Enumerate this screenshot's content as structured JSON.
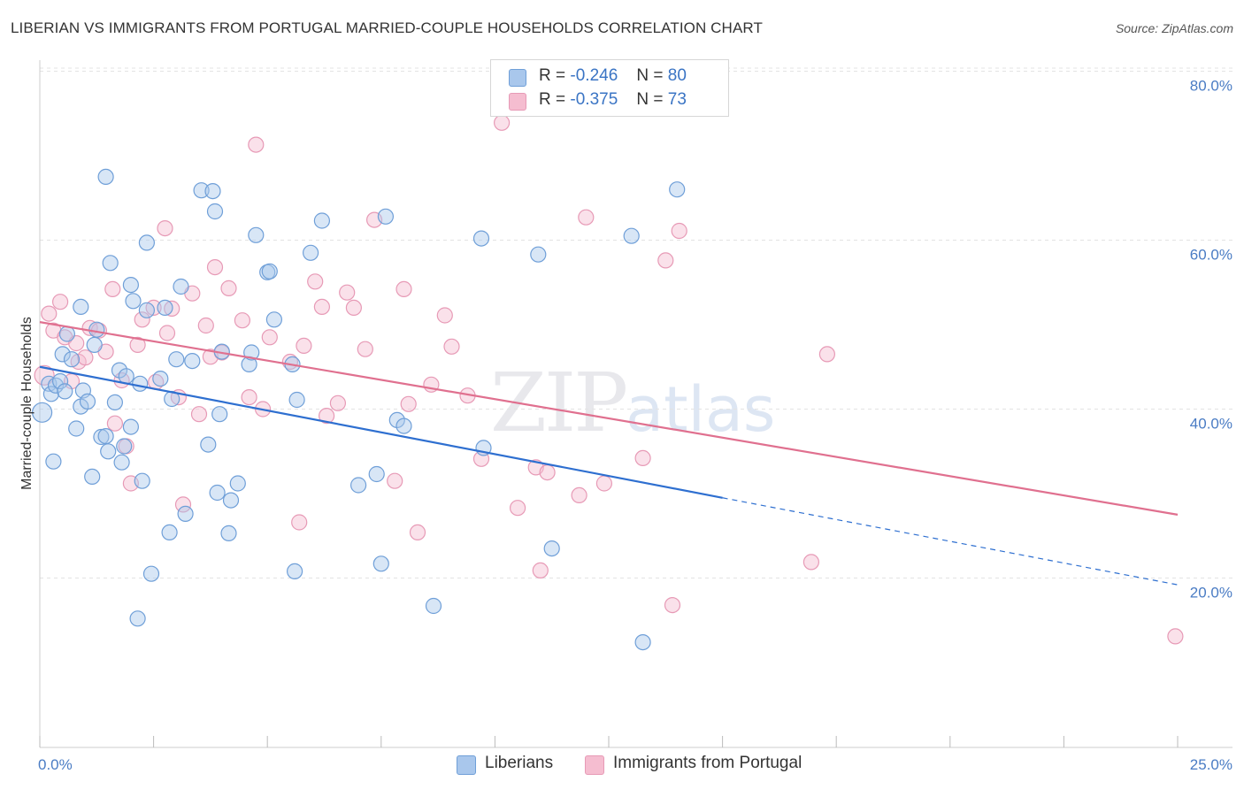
{
  "title": "LIBERIAN VS IMMIGRANTS FROM PORTUGAL MARRIED-COUPLE HOUSEHOLDS CORRELATION CHART",
  "source": "Source: ZipAtlas.com",
  "watermark": {
    "zip": "ZIP",
    "atlas": "atlas"
  },
  "colors": {
    "blue_fill": "#a9c7ec",
    "blue_stroke": "#6f9fd8",
    "blue_line": "#2e6fd0",
    "pink_fill": "#f5bdd0",
    "pink_stroke": "#e79ab6",
    "pink_line": "#e0708f",
    "tick": "#4a7cc4",
    "grid": "#e3e3e3"
  },
  "legend": {
    "rows": [
      {
        "r_label": "R =",
        "r_value": "-0.246",
        "n_label": "N =",
        "n_value": "80"
      },
      {
        "r_label": "R =",
        "r_value": "-0.375",
        "n_label": "N =",
        "n_value": "73"
      }
    ]
  },
  "bottom_legend": [
    "Liberians",
    "Immigrants from Portugal"
  ],
  "chart_data": {
    "type": "scatter",
    "title": "LIBERIAN VS IMMIGRANTS FROM PORTUGAL MARRIED-COUPLE HOUSEHOLDS CORRELATION CHART",
    "xlabel": "",
    "ylabel": "Married-couple Households",
    "xlim": [
      0,
      25
    ],
    "ylim": [
      0,
      82
    ],
    "x_tick_labels": [
      {
        "value": 0,
        "label": "0.0%"
      },
      {
        "value": 25,
        "label": "25.0%"
      }
    ],
    "x_minor_ticks": [
      0,
      2.5,
      5,
      7.5,
      10,
      12.5,
      15,
      17.5,
      20,
      22.5,
      25
    ],
    "y_ticks": [
      {
        "value": 20,
        "label": "20.0%"
      },
      {
        "value": 40,
        "label": "40.0%"
      },
      {
        "value": 60,
        "label": "60.0%"
      },
      {
        "value": 80,
        "label": "80.0%"
      }
    ],
    "grid": true,
    "series": [
      {
        "name": "Liberians",
        "color": "blue",
        "R": -0.246,
        "N": 80,
        "trend": {
          "x0": 0,
          "y0": 45.0,
          "x1": 15,
          "y1": 29.5,
          "dash_x1": 25,
          "dash_y1": 19.2
        },
        "points": [
          [
            0.05,
            39.6
          ],
          [
            0.2,
            43.0
          ],
          [
            0.25,
            41.8
          ],
          [
            0.3,
            33.8
          ],
          [
            0.35,
            42.8
          ],
          [
            0.45,
            43.3
          ],
          [
            0.5,
            46.5
          ],
          [
            0.55,
            42.1
          ],
          [
            0.6,
            48.9
          ],
          [
            0.7,
            45.9
          ],
          [
            0.8,
            37.7
          ],
          [
            0.9,
            52.1
          ],
          [
            0.9,
            40.3
          ],
          [
            0.95,
            42.2
          ],
          [
            1.05,
            40.9
          ],
          [
            1.15,
            32.0
          ],
          [
            1.2,
            47.6
          ],
          [
            1.25,
            49.4
          ],
          [
            1.35,
            36.7
          ],
          [
            1.45,
            36.8
          ],
          [
            1.45,
            67.5
          ],
          [
            1.5,
            35.0
          ],
          [
            1.55,
            57.3
          ],
          [
            1.65,
            40.8
          ],
          [
            1.75,
            44.6
          ],
          [
            1.8,
            33.7
          ],
          [
            1.85,
            35.6
          ],
          [
            1.9,
            43.9
          ],
          [
            2.0,
            37.9
          ],
          [
            2.0,
            54.7
          ],
          [
            2.05,
            52.8
          ],
          [
            2.15,
            15.2
          ],
          [
            2.2,
            43.0
          ],
          [
            2.25,
            31.5
          ],
          [
            2.35,
            51.7
          ],
          [
            2.35,
            59.7
          ],
          [
            2.45,
            20.5
          ],
          [
            2.65,
            43.6
          ],
          [
            2.75,
            52.0
          ],
          [
            2.85,
            25.4
          ],
          [
            2.9,
            41.2
          ],
          [
            3.0,
            45.9
          ],
          [
            3.1,
            54.5
          ],
          [
            3.2,
            27.6
          ],
          [
            3.35,
            45.7
          ],
          [
            3.55,
            65.9
          ],
          [
            3.7,
            35.8
          ],
          [
            3.8,
            65.8
          ],
          [
            3.85,
            63.4
          ],
          [
            3.9,
            30.1
          ],
          [
            3.95,
            39.4
          ],
          [
            4.0,
            46.8
          ],
          [
            4.15,
            25.3
          ],
          [
            4.2,
            29.2
          ],
          [
            4.35,
            31.2
          ],
          [
            4.6,
            45.3
          ],
          [
            4.65,
            46.7
          ],
          [
            4.75,
            60.6
          ],
          [
            5.0,
            56.2
          ],
          [
            5.05,
            56.3
          ],
          [
            5.15,
            50.6
          ],
          [
            5.55,
            45.3
          ],
          [
            5.6,
            20.8
          ],
          [
            5.65,
            41.1
          ],
          [
            5.95,
            58.5
          ],
          [
            6.2,
            62.3
          ],
          [
            7.0,
            31.0
          ],
          [
            7.4,
            32.3
          ],
          [
            7.5,
            21.7
          ],
          [
            7.85,
            38.7
          ],
          [
            8.0,
            38.0
          ],
          [
            8.65,
            16.7
          ],
          [
            9.75,
            35.4
          ],
          [
            10.95,
            58.3
          ],
          [
            11.25,
            23.5
          ],
          [
            13.25,
            12.4
          ],
          [
            14.0,
            66.0
          ],
          [
            9.7,
            60.2
          ],
          [
            7.6,
            62.8
          ],
          [
            13.0,
            60.5
          ]
        ]
      },
      {
        "name": "Immigrants from Portugal",
        "color": "pink",
        "R": -0.375,
        "N": 73,
        "trend": {
          "x0": 0,
          "y0": 50.3,
          "x1": 25,
          "y1": 27.5
        },
        "points": [
          [
            0.1,
            44.0
          ],
          [
            0.2,
            51.3
          ],
          [
            0.3,
            49.3
          ],
          [
            0.45,
            52.7
          ],
          [
            0.55,
            48.5
          ],
          [
            0.7,
            43.3
          ],
          [
            0.8,
            47.8
          ],
          [
            0.85,
            45.6
          ],
          [
            1.0,
            46.1
          ],
          [
            1.1,
            49.6
          ],
          [
            1.3,
            49.3
          ],
          [
            1.45,
            46.8
          ],
          [
            1.6,
            54.2
          ],
          [
            1.65,
            38.3
          ],
          [
            1.8,
            43.4
          ],
          [
            1.9,
            35.6
          ],
          [
            2.0,
            31.2
          ],
          [
            2.15,
            47.6
          ],
          [
            2.25,
            50.6
          ],
          [
            2.5,
            52.0
          ],
          [
            2.55,
            43.2
          ],
          [
            2.75,
            61.4
          ],
          [
            2.8,
            49.0
          ],
          [
            2.9,
            51.9
          ],
          [
            3.05,
            41.4
          ],
          [
            3.15,
            28.7
          ],
          [
            3.35,
            53.7
          ],
          [
            3.5,
            39.4
          ],
          [
            3.65,
            49.9
          ],
          [
            3.75,
            46.2
          ],
          [
            3.85,
            56.8
          ],
          [
            4.0,
            46.7
          ],
          [
            4.15,
            54.3
          ],
          [
            4.45,
            50.5
          ],
          [
            4.6,
            41.4
          ],
          [
            4.75,
            71.3
          ],
          [
            4.9,
            40.0
          ],
          [
            5.05,
            48.5
          ],
          [
            5.5,
            45.6
          ],
          [
            5.7,
            26.6
          ],
          [
            5.8,
            47.5
          ],
          [
            6.05,
            55.1
          ],
          [
            6.2,
            52.1
          ],
          [
            6.3,
            39.2
          ],
          [
            6.55,
            40.7
          ],
          [
            6.75,
            53.8
          ],
          [
            6.9,
            52.0
          ],
          [
            7.15,
            47.1
          ],
          [
            7.35,
            62.4
          ],
          [
            7.8,
            31.5
          ],
          [
            8.0,
            54.2
          ],
          [
            8.1,
            40.6
          ],
          [
            8.3,
            25.4
          ],
          [
            8.6,
            42.9
          ],
          [
            8.9,
            51.1
          ],
          [
            9.05,
            47.4
          ],
          [
            9.4,
            41.6
          ],
          [
            9.7,
            34.1
          ],
          [
            10.15,
            73.9
          ],
          [
            10.5,
            28.3
          ],
          [
            10.9,
            33.1
          ],
          [
            11.0,
            20.9
          ],
          [
            11.15,
            32.5
          ],
          [
            11.85,
            29.8
          ],
          [
            12.0,
            62.7
          ],
          [
            12.4,
            31.2
          ],
          [
            13.25,
            34.2
          ],
          [
            13.75,
            57.6
          ],
          [
            13.9,
            16.8
          ],
          [
            14.05,
            61.1
          ],
          [
            16.95,
            21.9
          ],
          [
            17.3,
            46.5
          ],
          [
            24.95,
            13.1
          ]
        ]
      }
    ]
  }
}
